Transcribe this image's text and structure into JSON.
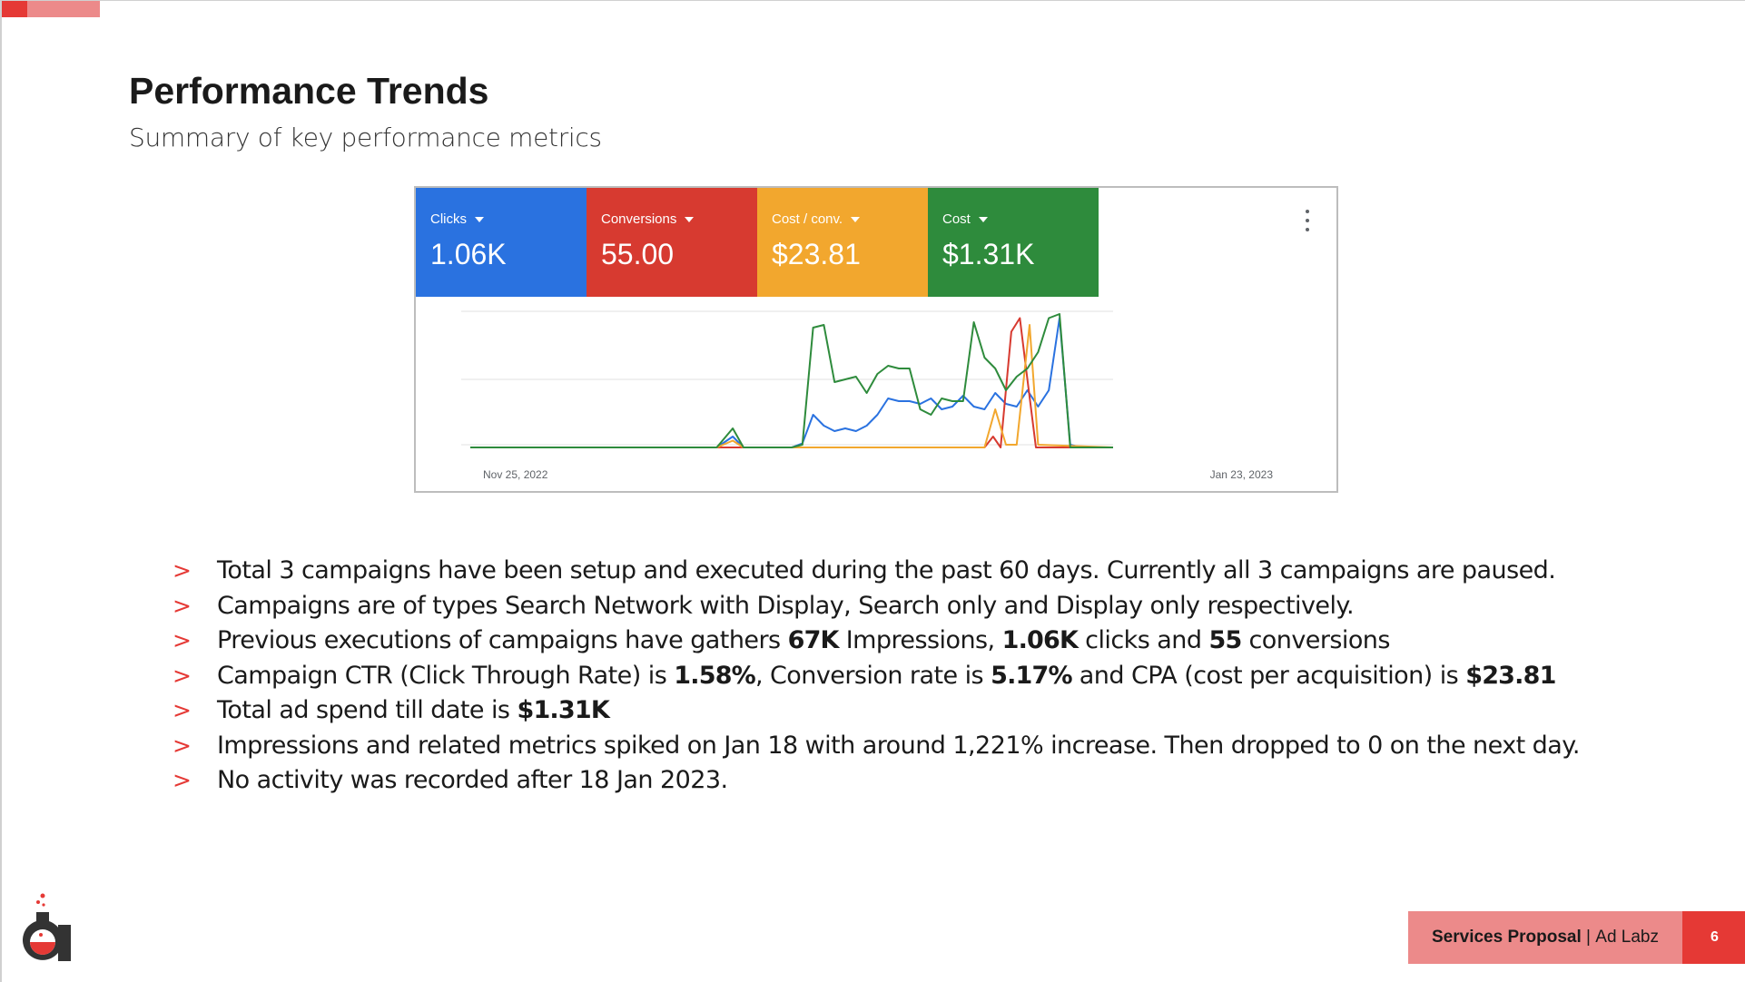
{
  "slide": {
    "title": "Performance Trends",
    "subtitle": "Summary of key performance metrics",
    "accent_color": "#e53935",
    "accent_light": "#ec8a8a"
  },
  "metrics": [
    {
      "label": "Clicks",
      "value": "1.06K",
      "color": "#2a72e0"
    },
    {
      "label": "Conversions",
      "value": "55.00",
      "color": "#d73a30"
    },
    {
      "label": "Cost / conv.",
      "value": "$23.81",
      "color": "#f2a72e"
    },
    {
      "label": "Cost",
      "value": "$1.31K",
      "color": "#2e8b3c"
    }
  ],
  "more_icon": "more-vert-icon",
  "chart_data": {
    "type": "line",
    "x_start_label": "Nov 25, 2022",
    "x_end_label": "Jan 23, 2023",
    "grid": true,
    "legend": "metric tiles above chart",
    "series": [
      {
        "name": "Clicks",
        "color": "#2a72e0",
        "points": [
          [
            0,
            0
          ],
          [
            23,
            0
          ],
          [
            24.5,
            0.08
          ],
          [
            25.5,
            0
          ],
          [
            30,
            0
          ],
          [
            31,
            0.03
          ],
          [
            32,
            0.24
          ],
          [
            33,
            0.16
          ],
          [
            34,
            0.12
          ],
          [
            35,
            0.14
          ],
          [
            36,
            0.12
          ],
          [
            37,
            0.16
          ],
          [
            38,
            0.24
          ],
          [
            39,
            0.36
          ],
          [
            40,
            0.34
          ],
          [
            41,
            0.34
          ],
          [
            42,
            0.32
          ],
          [
            43,
            0.36
          ],
          [
            44,
            0.28
          ],
          [
            45,
            0.3
          ],
          [
            46,
            0.38
          ],
          [
            47,
            0.3
          ],
          [
            48,
            0.28
          ],
          [
            49,
            0.4
          ],
          [
            50,
            0.32
          ],
          [
            51,
            0.3
          ],
          [
            52,
            0.42
          ],
          [
            53,
            0.3
          ],
          [
            54,
            0.42
          ],
          [
            55,
            0.95
          ],
          [
            56,
            0.02
          ],
          [
            57,
            0
          ],
          [
            58,
            0
          ],
          [
            60,
            0
          ]
        ]
      },
      {
        "name": "Conversions",
        "color": "#d73a30",
        "points": [
          [
            0,
            0
          ],
          [
            48,
            0
          ],
          [
            48.8,
            0.08
          ],
          [
            49.5,
            0
          ],
          [
            50.5,
            0.85
          ],
          [
            51.3,
            0.95
          ],
          [
            52,
            0.5
          ],
          [
            52.8,
            0
          ],
          [
            60,
            0
          ]
        ]
      },
      {
        "name": "Cost / conv.",
        "color": "#f2a72e",
        "points": [
          [
            0,
            0
          ],
          [
            23,
            0
          ],
          [
            24.5,
            0.05
          ],
          [
            25.5,
            0
          ],
          [
            48,
            0
          ],
          [
            49,
            0.28
          ],
          [
            50,
            0.02
          ],
          [
            51,
            0.02
          ],
          [
            52.2,
            0.9
          ],
          [
            53,
            0.02
          ],
          [
            60,
            0
          ]
        ]
      },
      {
        "name": "Cost",
        "color": "#2e8b3c",
        "points": [
          [
            0,
            0
          ],
          [
            23,
            0
          ],
          [
            24.5,
            0.14
          ],
          [
            25.5,
            0
          ],
          [
            30,
            0
          ],
          [
            31,
            0.02
          ],
          [
            32,
            0.88
          ],
          [
            33,
            0.9
          ],
          [
            34,
            0.48
          ],
          [
            35,
            0.5
          ],
          [
            36,
            0.52
          ],
          [
            37,
            0.4
          ],
          [
            38,
            0.54
          ],
          [
            39,
            0.6
          ],
          [
            40,
            0.58
          ],
          [
            41,
            0.58
          ],
          [
            42,
            0.28
          ],
          [
            43,
            0.24
          ],
          [
            44,
            0.36
          ],
          [
            45,
            0.34
          ],
          [
            46,
            0.34
          ],
          [
            47,
            0.92
          ],
          [
            48,
            0.66
          ],
          [
            49,
            0.58
          ],
          [
            50,
            0.42
          ],
          [
            51,
            0.52
          ],
          [
            52,
            0.58
          ],
          [
            53,
            0.7
          ],
          [
            54,
            0.95
          ],
          [
            55,
            0.98
          ],
          [
            56,
            0
          ],
          [
            57,
            0
          ],
          [
            60,
            0
          ]
        ]
      }
    ]
  },
  "bullets": [
    {
      "parts": [
        {
          "t": "Total 3 campaigns have been setup and executed during the past 60 days. Currently all 3 campaigns are paused.",
          "b": false
        }
      ]
    },
    {
      "parts": [
        {
          "t": "Campaigns are of types Search Network with Display, Search only and Display only respectively.",
          "b": false
        }
      ]
    },
    {
      "parts": [
        {
          "t": "Previous executions of campaigns have gathers ",
          "b": false
        },
        {
          "t": "67K",
          "b": true
        },
        {
          "t": " Impressions, ",
          "b": false
        },
        {
          "t": "1.06K",
          "b": true
        },
        {
          "t": " clicks and ",
          "b": false
        },
        {
          "t": "55",
          "b": true
        },
        {
          "t": " conversions",
          "b": false
        }
      ]
    },
    {
      "parts": [
        {
          "t": "Campaign CTR (Click Through Rate) is ",
          "b": false
        },
        {
          "t": "1.58%",
          "b": true
        },
        {
          "t": ", Conversion rate is ",
          "b": false
        },
        {
          "t": "5.17%",
          "b": true
        },
        {
          "t": " and CPA (cost per acquisition) is ",
          "b": false
        },
        {
          "t": "$23.81",
          "b": true
        }
      ]
    },
    {
      "parts": [
        {
          "t": "Total ad spend till date is ",
          "b": false
        },
        {
          "t": "$1.31K",
          "b": true
        }
      ]
    },
    {
      "parts": [
        {
          "t": "Impressions and related metrics spiked on Jan 18 with around 1,221% increase. Then dropped to 0 on the next day.",
          "b": false
        }
      ]
    },
    {
      "parts": [
        {
          "t": "No activity was recorded after 18 Jan 2023.",
          "b": false
        }
      ]
    }
  ],
  "bullet_marker": ">",
  "logo": {
    "letter": "a",
    "icon": "adlabz-flask-logo"
  },
  "footer": {
    "bold": "Services Proposal",
    "sep": " | ",
    "rest": "Ad Labz",
    "page": "6"
  }
}
